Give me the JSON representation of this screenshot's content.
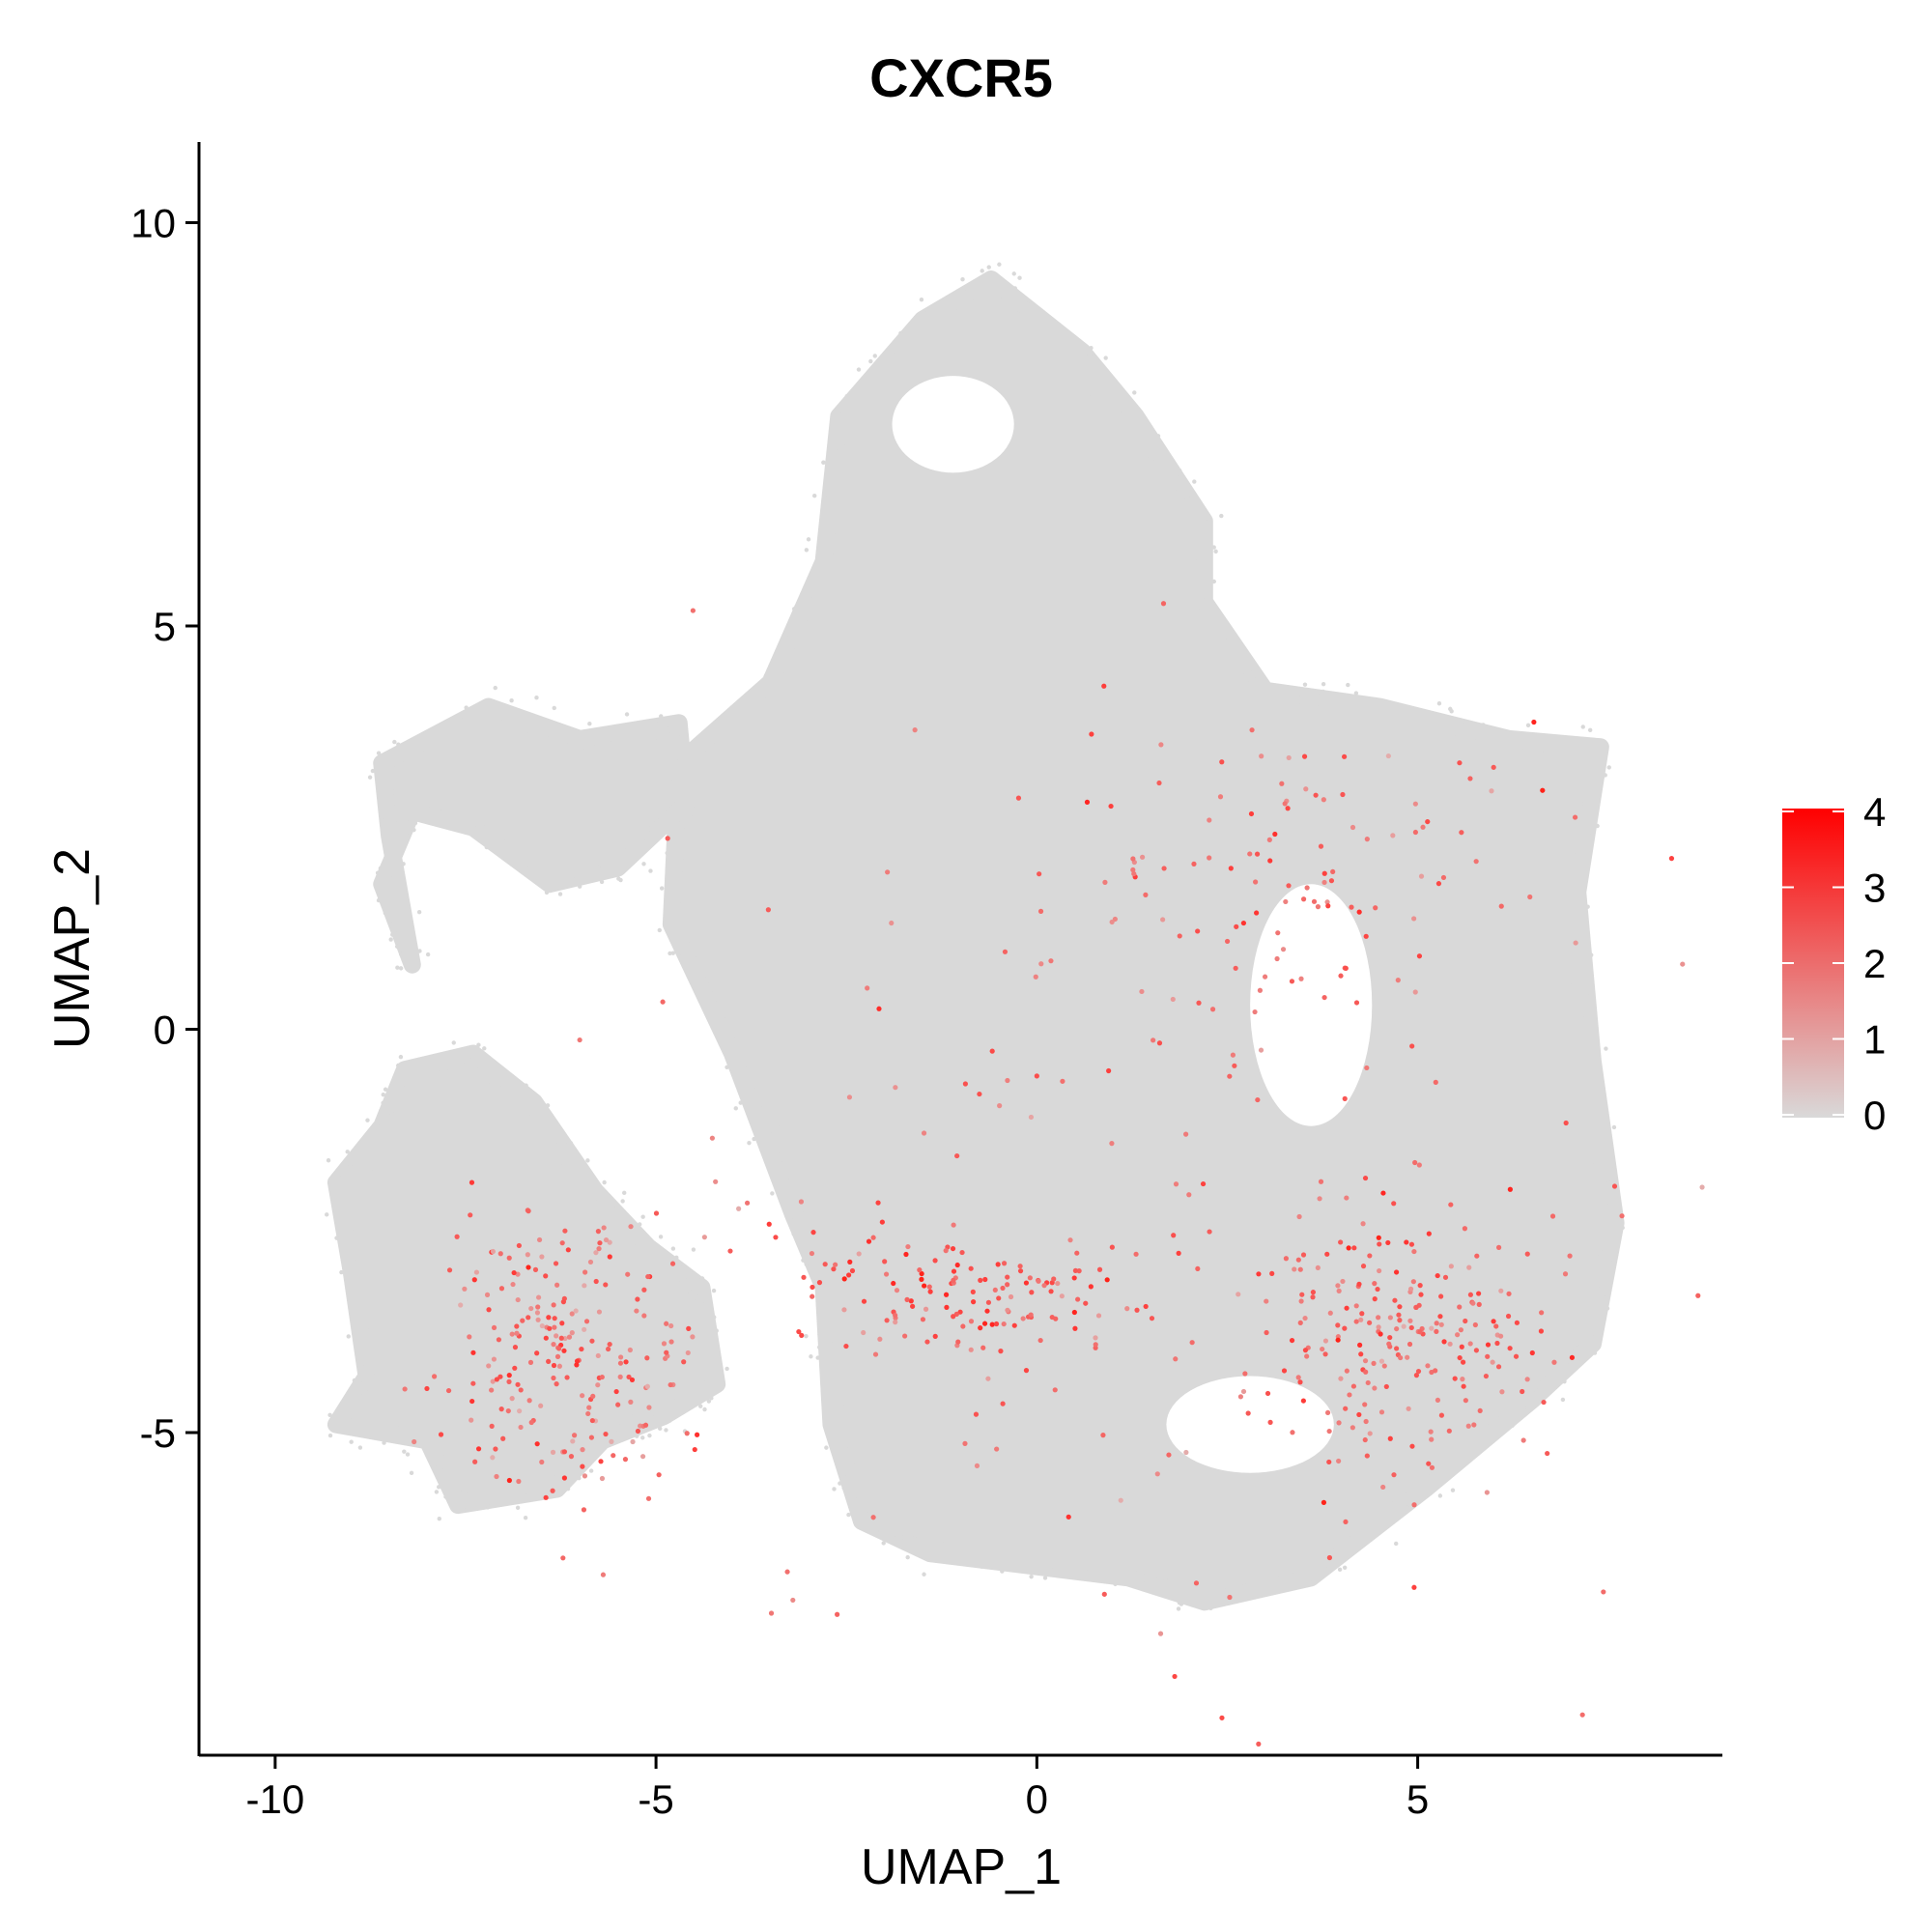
{
  "chart_data": {
    "type": "scatter",
    "title": "CXCR5",
    "xlabel": "UMAP_1",
    "ylabel": "UMAP_2",
    "xlim": [
      -11,
      9
    ],
    "ylim": [
      -9,
      11
    ],
    "x_ticks": [
      -10,
      -5,
      0,
      5
    ],
    "x_tick_labels": [
      "-10",
      "-5",
      "0",
      "5"
    ],
    "y_ticks": [
      -5,
      0,
      5,
      10
    ],
    "y_tick_labels": [
      "-5",
      "0",
      "5",
      "10"
    ],
    "grid": false,
    "color_scale": {
      "min": 0,
      "max": 4,
      "ticks": [
        0,
        1,
        2,
        3,
        4
      ],
      "tick_labels": [
        "0",
        "1",
        "2",
        "3",
        "4"
      ],
      "low_color": "#d9d9d9",
      "high_color": "#ff0000",
      "legend_position": "right"
    },
    "background_color": "#d9d9d9",
    "clusters": [
      {
        "name": "main-body",
        "outline": [
          [
            -4.7,
            3.3
          ],
          [
            -3.5,
            4.3
          ],
          [
            -2.8,
            5.8
          ],
          [
            -2.6,
            7.6
          ],
          [
            -1.5,
            8.8
          ],
          [
            -0.6,
            9.3
          ],
          [
            0.6,
            8.4
          ],
          [
            1.3,
            7.6
          ],
          [
            2.2,
            6.3
          ],
          [
            2.2,
            5.3
          ],
          [
            3.0,
            4.2
          ],
          [
            4.5,
            4.0
          ],
          [
            6.2,
            3.6
          ],
          [
            7.4,
            3.5
          ],
          [
            7.1,
            1.7
          ],
          [
            7.3,
            -0.4
          ],
          [
            7.6,
            -2.4
          ],
          [
            7.3,
            -3.9
          ],
          [
            6.5,
            -4.6
          ],
          [
            5.1,
            -5.7
          ],
          [
            3.6,
            -6.8
          ],
          [
            2.2,
            -7.1
          ],
          [
            1.2,
            -6.8
          ],
          [
            -1.4,
            -6.5
          ],
          [
            -2.3,
            -6.1
          ],
          [
            -2.7,
            -4.9
          ],
          [
            -2.8,
            -3.2
          ],
          [
            -3.2,
            -2.3
          ],
          [
            -4.0,
            -0.3
          ],
          [
            -4.8,
            1.3
          ]
        ]
      },
      {
        "name": "left-arm",
        "outline": [
          [
            -8.6,
            3.3
          ],
          [
            -7.2,
            4.0
          ],
          [
            -6.0,
            3.6
          ],
          [
            -4.7,
            3.8
          ],
          [
            -4.6,
            2.8
          ],
          [
            -5.5,
            2.0
          ],
          [
            -6.4,
            1.8
          ],
          [
            -7.4,
            2.5
          ],
          [
            -8.2,
            2.7
          ],
          [
            -8.6,
            1.8
          ],
          [
            -8.2,
            0.8
          ],
          [
            -8.5,
            2.4
          ]
        ]
      },
      {
        "name": "bottom-left-cluster",
        "outline": [
          [
            -8.3,
            -0.5
          ],
          [
            -7.4,
            -0.3
          ],
          [
            -6.6,
            -0.9
          ],
          [
            -5.8,
            -2.0
          ],
          [
            -5.1,
            -2.7
          ],
          [
            -4.4,
            -3.2
          ],
          [
            -4.2,
            -4.4
          ],
          [
            -4.9,
            -4.8
          ],
          [
            -5.7,
            -5.1
          ],
          [
            -6.3,
            -5.7
          ],
          [
            -7.6,
            -5.9
          ],
          [
            -8.0,
            -5.1
          ],
          [
            -9.2,
            -4.9
          ],
          [
            -8.8,
            -4.3
          ],
          [
            -9.0,
            -3.0
          ],
          [
            -9.2,
            -1.9
          ],
          [
            -8.6,
            -1.2
          ]
        ]
      }
    ],
    "holes": [
      {
        "name": "right-hole-upper",
        "center": [
          3.6,
          0.3
        ],
        "radii": [
          0.8,
          1.5
        ]
      },
      {
        "name": "right-hole-lower",
        "center": [
          2.8,
          -4.9
        ],
        "radii": [
          1.1,
          0.6
        ]
      },
      {
        "name": "top-notch",
        "center": [
          -1.1,
          7.5
        ],
        "radii": [
          0.8,
          0.6
        ]
      }
    ],
    "expressing_regions": [
      {
        "name": "lower-left-cluster",
        "center": [
          -6.2,
          -4.0
        ],
        "spread": [
          0.8,
          0.9
        ],
        "count": 220,
        "mean_expression": 1.9
      },
      {
        "name": "lower-right-band",
        "center": [
          4.8,
          -3.8
        ],
        "spread": [
          0.9,
          0.7
        ],
        "count": 200,
        "mean_expression": 2.1
      },
      {
        "name": "lower-middle-band",
        "center": [
          -1.1,
          -3.2
        ],
        "spread": [
          1.1,
          0.35
        ],
        "count": 120,
        "mean_expression": 2.3
      },
      {
        "name": "upper-right-region",
        "center": [
          3.5,
          2.0
        ],
        "spread": [
          1.6,
          1.0
        ],
        "count": 90,
        "mean_expression": 2.0
      },
      {
        "name": "scattered-main",
        "center": [
          1.5,
          -2.0
        ],
        "spread": [
          3.5,
          3.0
        ],
        "count": 180,
        "mean_expression": 2.0
      }
    ]
  }
}
